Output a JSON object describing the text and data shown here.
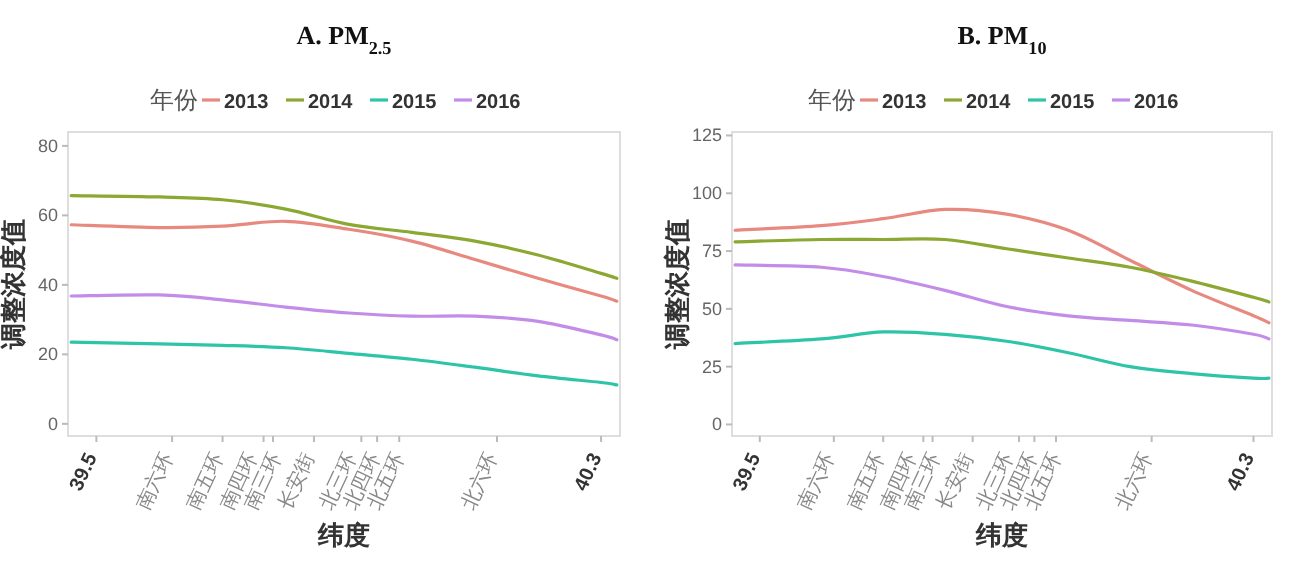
{
  "chart_data": [
    {
      "type": "line",
      "title": "A. PM$_{2.5}$",
      "xlabel": "纬度",
      "ylabel": "调整浓度值",
      "legend_title": "年份",
      "legend": "top",
      "xlim": [
        39.455,
        40.33
      ],
      "ylim": [
        -3.5,
        84
      ],
      "yticks": [
        0,
        20,
        40,
        60,
        80
      ],
      "xticks": [
        {
          "value": 39.5,
          "label": "39.5"
        },
        {
          "value": 39.62,
          "label": "南六环"
        },
        {
          "value": 39.7,
          "label": "南五环"
        },
        {
          "value": 39.765,
          "label": "南四环"
        },
        {
          "value": 39.78,
          "label": "南三环"
        },
        {
          "value": 39.845,
          "label": "长安街"
        },
        {
          "value": 39.92,
          "label": "北三环"
        },
        {
          "value": 39.945,
          "label": "北四环"
        },
        {
          "value": 39.98,
          "label": "北五环"
        },
        {
          "value": 40.135,
          "label": "北六环"
        },
        40.3
      ],
      "x": [
        39.46,
        39.6,
        39.7,
        39.8,
        39.9,
        40.0,
        40.1,
        40.2,
        40.3,
        40.325
      ],
      "series": [
        {
          "name": "2013",
          "color": "#e8897f",
          "values": [
            57.3,
            56.5,
            56.9,
            58.3,
            56.0,
            52.6,
            47.3,
            41.9,
            36.8,
            35.3
          ]
        },
        {
          "name": "2014",
          "color": "#8aa832",
          "values": [
            65.7,
            65.3,
            64.5,
            61.8,
            57.4,
            55.1,
            52.6,
            48.6,
            43.3,
            41.9
          ]
        },
        {
          "name": "2015",
          "color": "#2ec4a8",
          "values": [
            23.5,
            23.0,
            22.6,
            21.9,
            20.3,
            18.6,
            16.3,
            13.8,
            11.9,
            11.2
          ]
        },
        {
          "name": "2016",
          "color": "#c38ce8",
          "values": [
            36.8,
            37.1,
            35.7,
            33.6,
            31.9,
            31.0,
            31.0,
            29.5,
            25.6,
            24.2
          ]
        }
      ]
    },
    {
      "type": "line",
      "title": "B. PM$_{10}$",
      "xlabel": "纬度",
      "ylabel": "调整浓度值",
      "legend_title": "年份",
      "legend": "top",
      "xlim": [
        39.455,
        40.33
      ],
      "ylim": [
        -5,
        126.5
      ],
      "yticks": [
        0,
        25,
        50,
        75,
        100,
        125
      ],
      "xticks": [
        {
          "value": 39.5,
          "label": "39.5"
        },
        {
          "value": 39.62,
          "label": "南六环"
        },
        {
          "value": 39.7,
          "label": "南五环"
        },
        {
          "value": 39.765,
          "label": "南四环"
        },
        {
          "value": 39.78,
          "label": "南三环"
        },
        {
          "value": 39.845,
          "label": "长安街"
        },
        {
          "value": 39.92,
          "label": "北三环"
        },
        {
          "value": 39.945,
          "label": "北四环"
        },
        {
          "value": 39.98,
          "label": "北五环"
        },
        {
          "value": 40.135,
          "label": "北六环"
        },
        40.3
      ],
      "x": [
        39.46,
        39.6,
        39.7,
        39.8,
        39.9,
        40.0,
        40.1,
        40.2,
        40.3,
        40.325
      ],
      "series": [
        {
          "name": "2013",
          "color": "#e8897f",
          "values": [
            84,
            86,
            89,
            93,
            91,
            84,
            71,
            58,
            47,
            44
          ]
        },
        {
          "name": "2014",
          "color": "#8aa832",
          "values": [
            79,
            80,
            80,
            80,
            76,
            72,
            68,
            62,
            55,
            53
          ]
        },
        {
          "name": "2015",
          "color": "#2ec4a8",
          "values": [
            35,
            37,
            40,
            39,
            36,
            31,
            25,
            22,
            20,
            20
          ]
        },
        {
          "name": "2016",
          "color": "#c38ce8",
          "values": [
            69,
            68,
            64,
            58,
            51,
            47,
            45,
            43,
            39,
            37
          ]
        }
      ]
    }
  ]
}
